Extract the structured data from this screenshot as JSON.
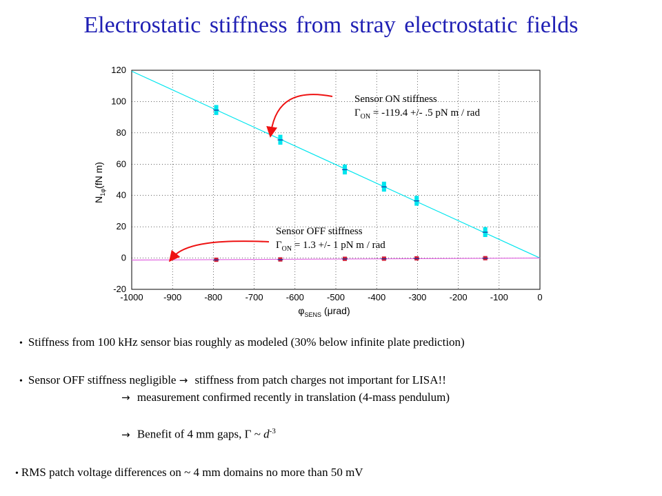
{
  "title": "Electrostatic stiffness from stray electrostatic fields",
  "chart_data": {
    "type": "scatter",
    "xlabel_main": "φ",
    "xlabel_sub": "SENS",
    "xlabel_unit": "(μrad)",
    "ylabel_main": "N",
    "ylabel_sub": "1φ",
    "ylabel_unit": "(fN m)",
    "xlim": [
      -1000,
      0
    ],
    "ylim": [
      -20,
      120
    ],
    "xticks": [
      -1000,
      -900,
      -800,
      -700,
      -600,
      -500,
      -400,
      -300,
      -200,
      -100,
      0
    ],
    "yticks": [
      -20,
      0,
      20,
      40,
      60,
      80,
      100,
      120
    ],
    "series": [
      {
        "color": "#00e5ee",
        "points": [
          {
            "x": -793,
            "y": 94.5
          },
          {
            "x": -636,
            "y": 75.5
          },
          {
            "x": -478,
            "y": 56.5
          },
          {
            "x": -382,
            "y": 45.5
          },
          {
            "x": -302,
            "y": 36.5
          },
          {
            "x": -134,
            "y": 16.5
          }
        ],
        "fit": {
          "x": [
            -1000,
            0
          ],
          "y": [
            119.4,
            0
          ]
        }
      },
      {
        "color": "#d0203a",
        "points": [
          {
            "x": -793,
            "y": -1.2
          },
          {
            "x": -636,
            "y": -1.0
          },
          {
            "x": -478,
            "y": -0.6
          },
          {
            "x": -382,
            "y": -0.5
          },
          {
            "x": -302,
            "y": -0.3
          },
          {
            "x": -134,
            "y": -0.2
          }
        ],
        "fit": {
          "x": [
            -1000,
            0
          ],
          "y": [
            -1.3,
            0
          ]
        }
      }
    ]
  },
  "annotations": {
    "on_label": "Sensor ON stiffness",
    "on_symbol": "Γ",
    "on_sub": "ON",
    "on_value": " = -119.4 +/- .5 pN m / rad",
    "off_label": "Sensor OFF stiffness",
    "off_symbol": "Γ",
    "off_sub": "ON",
    "off_value": " = 1.3 +/- 1 pN m / rad"
  },
  "bullets": {
    "b1": "Stiffness from 100 kHz sensor bias roughly as modeled (30% below infinite plate prediction)",
    "b2": "Sensor OFF stiffness negligible ",
    "b2_cont": " stiffness from patch charges not important for LISA!!",
    "b3": " measurement  confirmed recently in translation (4-mass pendulum)",
    "b4_pre": " Benefit of 4 mm gaps, Γ ~  ",
    "b4_var": "d",
    "b4_exp": "-3",
    "b5": "RMS patch voltage differences on ~ 4 mm domains no more than 50 mV",
    "bullet_glyph": "•",
    "arrow_glyph": "→"
  }
}
